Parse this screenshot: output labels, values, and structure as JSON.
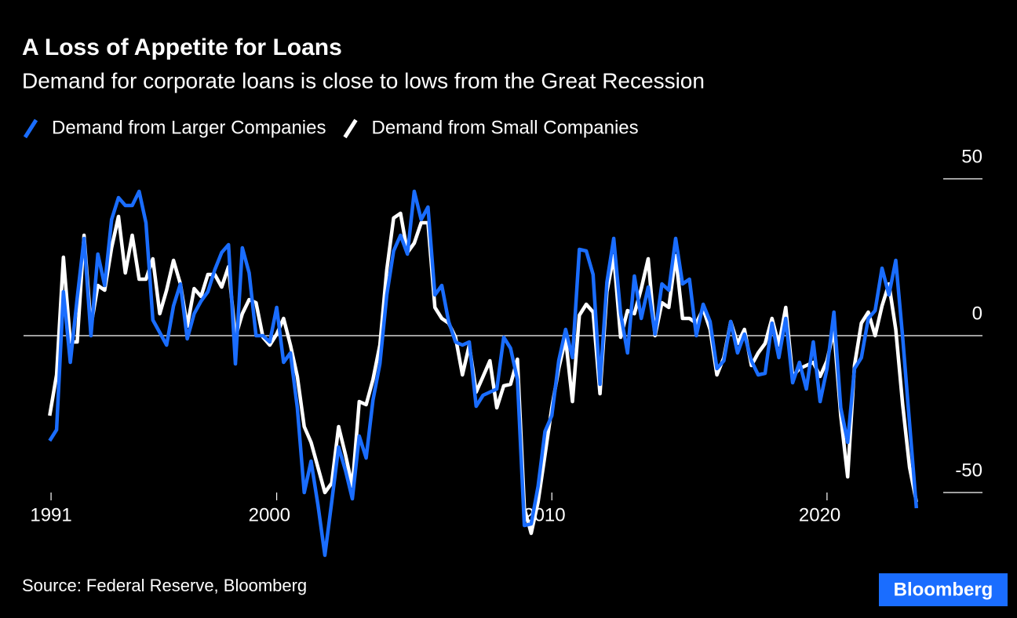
{
  "chart_data": {
    "type": "line",
    "title": "A Loss of Appetite for Loans",
    "subtitle": "Demand for corporate loans is close to lows from the Great Recession",
    "source": "Source: Federal Reserve, Bloomberg",
    "brand": "Bloomberg",
    "x": [
      1991.75,
      1992,
      1992.25,
      1992.5,
      1992.75,
      1993,
      1993.25,
      1993.5,
      1993.75,
      1994,
      1994.25,
      1994.5,
      1994.75,
      1995,
      1995.25,
      1995.5,
      1995.75,
      1996,
      1996.25,
      1996.5,
      1996.75,
      1997,
      1997.25,
      1997.5,
      1997.75,
      1998,
      1998.25,
      1998.5,
      1998.75,
      1999,
      1999.25,
      1999.5,
      1999.75,
      2000,
      2000.25,
      2000.5,
      2000.75,
      2001,
      2001.25,
      2001.5,
      2001.75,
      2002,
      2002.25,
      2002.5,
      2002.75,
      2003,
      2003.25,
      2003.5,
      2003.75,
      2004,
      2004.25,
      2004.5,
      2004.75,
      2005,
      2005.25,
      2005.5,
      2005.75,
      2006,
      2006.25,
      2006.5,
      2006.75,
      2007,
      2007.25,
      2007.5,
      2007.75,
      2008,
      2008.25,
      2008.5,
      2008.75,
      2009,
      2009.25,
      2009.5,
      2009.75,
      2010,
      2010.25,
      2010.5,
      2010.75,
      2011,
      2011.25,
      2011.5,
      2011.75,
      2012,
      2012.25,
      2012.5,
      2012.75,
      2013,
      2013.25,
      2013.5,
      2013.75,
      2014,
      2014.25,
      2014.5,
      2014.75,
      2015,
      2015.25,
      2015.5,
      2015.75,
      2016,
      2016.25,
      2016.5,
      2016.75,
      2017,
      2017.25,
      2017.5,
      2017.75,
      2018,
      2018.25,
      2018.5,
      2018.75,
      2019,
      2019.25,
      2019.5,
      2019.75,
      2020,
      2020.25,
      2020.5,
      2020.75,
      2021,
      2021.25,
      2021.5,
      2021.75,
      2022,
      2022.25,
      2022.5,
      2022.75,
      2023,
      2023.25
    ],
    "series": [
      {
        "name": "Demand from Larger Companies",
        "color": "#1a6dff",
        "values": [
          -33.5,
          -30,
          14,
          -8.5,
          12,
          31,
          0,
          26,
          16,
          37,
          44,
          41.5,
          41.5,
          46,
          36,
          5,
          1,
          -3,
          9.5,
          16.5,
          -1,
          7,
          11,
          14,
          21,
          26.5,
          29,
          -9,
          28,
          20,
          0,
          0,
          -2,
          9,
          -8.5,
          -5.5,
          -23,
          -50,
          -40,
          -54,
          -70,
          -53,
          -35.5,
          -43,
          -52,
          -32,
          -39,
          -20.5,
          -9,
          13,
          27,
          32,
          26,
          46,
          37,
          41,
          13,
          16,
          4.5,
          -2,
          -3,
          -2,
          -22.5,
          -19,
          -18,
          -17,
          -0.5,
          -4,
          -14,
          -60.5,
          -60,
          -48,
          -30.5,
          -25.5,
          -8,
          2,
          -7,
          27.5,
          27,
          19.5,
          -15.5,
          17,
          31,
          7,
          -5.5,
          19,
          5.5,
          15.5,
          0.5,
          16.5,
          14.5,
          31,
          16.5,
          18,
          0,
          10,
          4.5,
          -10.5,
          -8,
          4.5,
          -5.5,
          0.5,
          -8,
          -12.5,
          -12,
          4,
          -7,
          5.5,
          -15,
          -8.5,
          -17,
          -2,
          -21,
          -10.5,
          7.5,
          -23,
          -34,
          -10.5,
          -7,
          5.5,
          8,
          21.5,
          13,
          24,
          -0.5,
          -28,
          -55
        ]
      },
      {
        "name": "Demand from Small Companies",
        "color": "#ffffff",
        "values": [
          -25.5,
          -12.5,
          25,
          -2,
          -2,
          32,
          3,
          16,
          14.5,
          28,
          38,
          20,
          32,
          18,
          18,
          24.5,
          7,
          14.5,
          24,
          16.5,
          3,
          15,
          12.5,
          19.5,
          19.5,
          15.5,
          22,
          -0.5,
          7,
          11.5,
          10.5,
          -0.5,
          -3,
          0.5,
          5.5,
          -3,
          -13,
          -29,
          -34,
          -42,
          -50,
          -47,
          -29,
          -38,
          -48,
          -21,
          -22,
          -14,
          -3,
          21,
          37.5,
          39,
          26.5,
          29.5,
          36,
          36,
          9,
          5.5,
          4,
          -0.5,
          -12.5,
          -3,
          -18,
          -13,
          -8,
          -23,
          -16,
          -15.5,
          -7.5,
          -55,
          -63,
          -53,
          -38,
          -23,
          -10.5,
          -1,
          -21,
          6.5,
          10,
          7.5,
          -18.5,
          14,
          25.5,
          -0.5,
          8,
          7,
          15,
          24.5,
          0,
          10.5,
          9,
          25.5,
          5.5,
          5.5,
          4,
          8.5,
          2,
          -12.5,
          -7,
          4.5,
          -2.5,
          2,
          -9.5,
          -5.5,
          -2.5,
          5.5,
          -3,
          9,
          -13,
          -10.5,
          -9.5,
          -8.5,
          -13,
          -8,
          2,
          -25.5,
          -45,
          -9.5,
          4,
          7.5,
          0,
          9.5,
          16.5,
          2,
          -22,
          -42,
          -53
        ]
      }
    ],
    "xlim": [
      1990.8,
      2025.65
    ],
    "xticks": [
      {
        "value": 1991.8,
        "label": "1991"
      },
      2000,
      2010,
      2020
    ],
    "ylim": [
      -72,
      57
    ],
    "yticks": [
      50,
      0,
      -50
    ]
  }
}
